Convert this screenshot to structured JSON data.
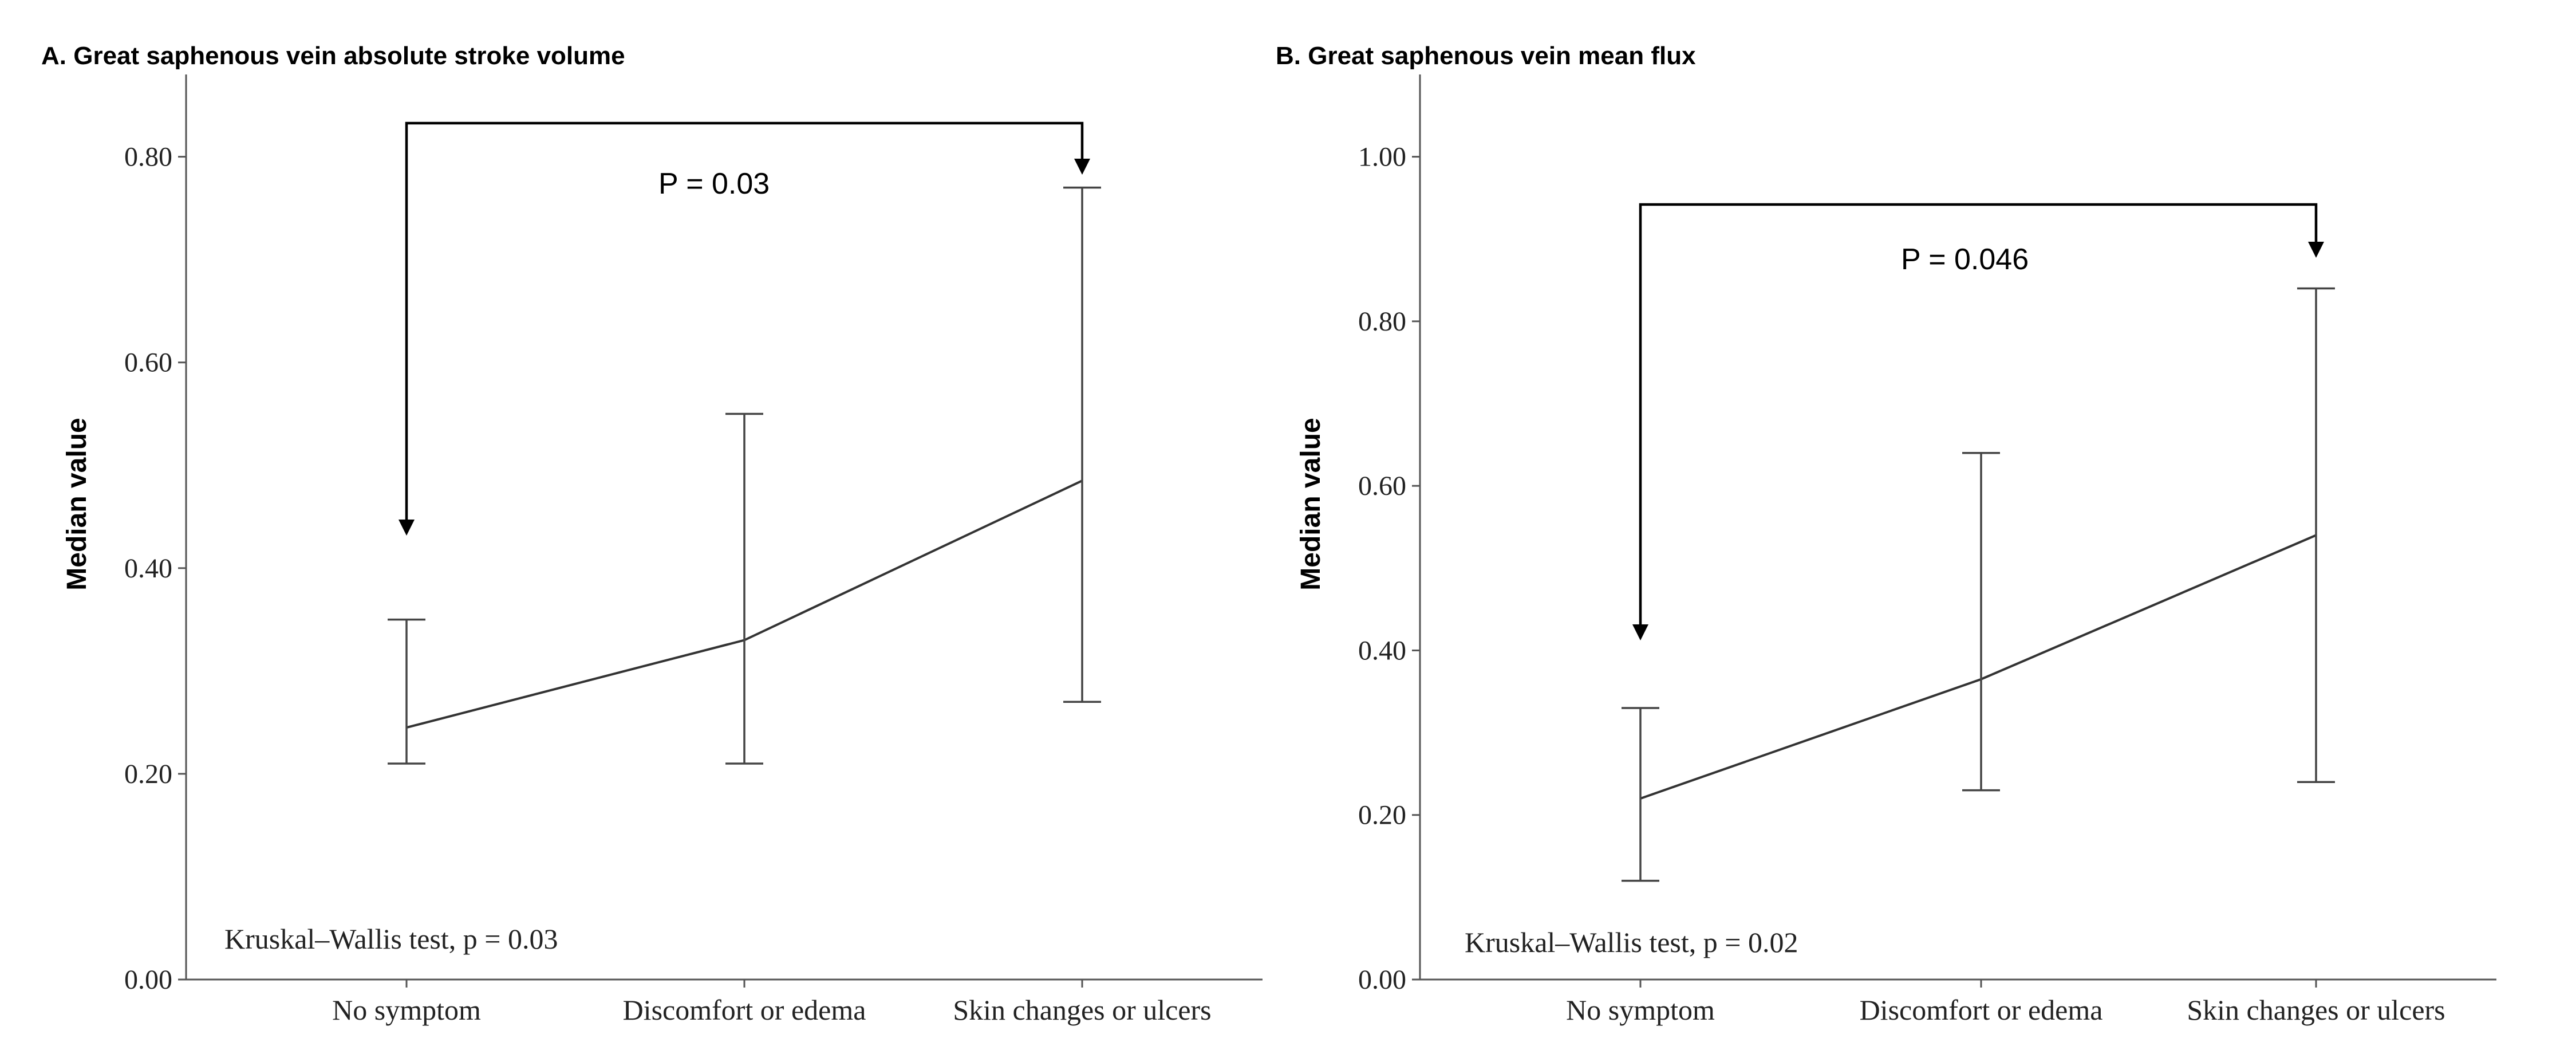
{
  "chart_data": [
    {
      "type": "line",
      "title": "A.  Great saphenous vein absolute stroke volume",
      "ylabel": "Median value",
      "xlabel": "",
      "categories": [
        "No symptom",
        "Discomfort or edema",
        "Skin changes or ulcers"
      ],
      "series": [
        {
          "values": [
            0.245,
            0.33,
            0.485
          ],
          "lower": [
            0.21,
            0.21,
            0.27
          ],
          "upper": [
            0.35,
            0.55,
            0.77
          ]
        }
      ],
      "ylim": [
        0,
        0.88
      ],
      "yticks": [
        "0.00",
        "0.20",
        "0.40",
        "0.60",
        "0.80"
      ],
      "annotation": "Kruskal–Wallis test, p = 0.03",
      "comparison": {
        "label": "P = 0.03",
        "from": 0,
        "to": 2
      }
    },
    {
      "type": "line",
      "title": "B.  Great saphenous vein mean flux",
      "ylabel": "Median value",
      "xlabel": "",
      "categories": [
        "No symptom",
        "Discomfort or edema",
        "Skin changes or ulcers"
      ],
      "series": [
        {
          "values": [
            0.22,
            0.365,
            0.54
          ],
          "lower": [
            0.12,
            0.23,
            0.24
          ],
          "upper": [
            0.33,
            0.64,
            0.84
          ]
        }
      ],
      "ylim": [
        0,
        1.1
      ],
      "yticks": [
        "0.00",
        "0.20",
        "0.40",
        "0.60",
        "0.80",
        "1.00"
      ],
      "annotation": "Kruskal–Wallis test, p = 0.02",
      "comparison": {
        "label": "P = 0.046",
        "from": 0,
        "to": 2
      }
    }
  ]
}
